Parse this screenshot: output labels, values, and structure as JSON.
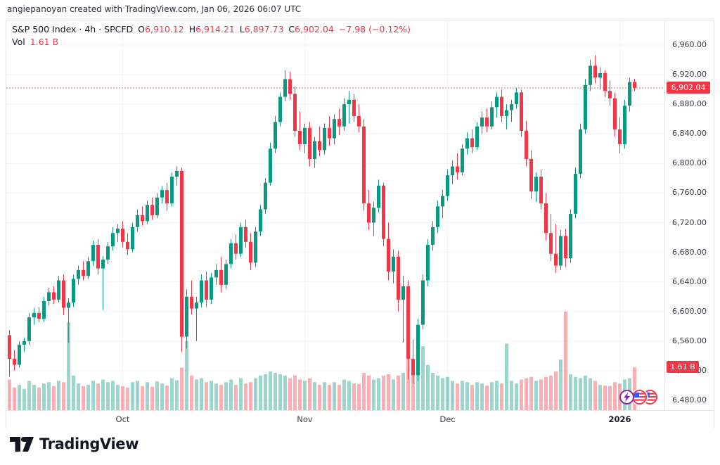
{
  "attribution": "angiepanoyan created with TradingView.com, Jan 06, 2026 06:07 UTC",
  "legend": {
    "title": "S&P 500 Index · 4h · SPCFD",
    "ohlc": [
      {
        "label": "O",
        "value": "6,910.12"
      },
      {
        "label": "H",
        "value": "6,914.21"
      },
      {
        "label": "L",
        "value": "6,897.73"
      },
      {
        "label": "C",
        "value": "6,902.04"
      }
    ],
    "change": "−7.98 (−0.12%)",
    "vol_label": "Vol",
    "vol_value": "1.61 B"
  },
  "colors": {
    "up": "#089981",
    "down": "#f23645",
    "vol_up": "rgba(8,153,129,0.40)",
    "vol_down": "rgba(242,54,69,0.40)",
    "grid": "#f0f3fa",
    "axis_text": "#363a45",
    "badge_bg": "#f23645",
    "text": "#131722"
  },
  "footer": {
    "brand": "TradingView"
  },
  "icons": {
    "status": [
      "lightning-icon",
      "us-flag-icon",
      "us-flag-icon"
    ]
  },
  "chart_data": {
    "type": "candlestick",
    "title": "S&P 500 Index",
    "interval": "4h",
    "exchange": "SPCFD",
    "legend_ohlc": {
      "open": 6910.12,
      "high": 6914.21,
      "low": 6897.73,
      "close": 6902.04,
      "change": -7.98,
      "change_pct": -0.12,
      "volume": "1.61 B"
    },
    "grid": true,
    "legend_position": "top-left",
    "y_axis": {
      "min": 6480,
      "max": 6960,
      "tick_step": 40,
      "ticks": [
        {
          "value": 6960,
          "label": "6,960.00"
        },
        {
          "value": 6920,
          "label": "6,920.00"
        },
        {
          "value": 6880,
          "label": "6,880.00"
        },
        {
          "value": 6840,
          "label": "6,840.00"
        },
        {
          "value": 6800,
          "label": "6,800.00"
        },
        {
          "value": 6760,
          "label": "6,760.00"
        },
        {
          "value": 6720,
          "label": "6,720.00"
        },
        {
          "value": 6680,
          "label": "6,680.00"
        },
        {
          "value": 6640,
          "label": "6,640.00"
        },
        {
          "value": 6600,
          "label": "6,600.00"
        },
        {
          "value": 6560,
          "label": "6,560.00"
        },
        {
          "value": 6520,
          "label": "6,520.00"
        },
        {
          "value": 6480,
          "label": "6,480.00"
        }
      ]
    },
    "x_axis": {
      "markers": [
        {
          "label": "Oct",
          "index": 23,
          "bold": false
        },
        {
          "label": "Nov",
          "index": 60,
          "bold": false
        },
        {
          "label": "Dec",
          "index": 89,
          "bold": false
        },
        {
          "label": "2026",
          "index": 124,
          "bold": true
        }
      ]
    },
    "last_price": {
      "value": 6902.04,
      "label": "6,902.04"
    },
    "last_volume": {
      "value": 1.61,
      "label": "1.61 B"
    },
    "volume_scale_max": 3.7,
    "candle_format": [
      "open",
      "high",
      "low",
      "close",
      "volume_billions"
    ],
    "candles": [
      [
        6568,
        6575,
        6512,
        6536,
        1.15
      ],
      [
        6536,
        6548,
        6520,
        6528,
        0.85
      ],
      [
        6528,
        6560,
        6524,
        6555,
        0.95
      ],
      [
        6555,
        6565,
        6545,
        6560,
        0.8
      ],
      [
        6560,
        6598,
        6555,
        6592,
        1.1
      ],
      [
        6592,
        6605,
        6582,
        6598,
        0.95
      ],
      [
        6598,
        6606,
        6585,
        6590,
        0.85
      ],
      [
        6590,
        6620,
        6586,
        6614,
        1.0
      ],
      [
        6614,
        6632,
        6608,
        6626,
        1.05
      ],
      [
        6626,
        6634,
        6610,
        6616,
        0.9
      ],
      [
        6616,
        6648,
        6612,
        6642,
        1.1
      ],
      [
        6642,
        6650,
        6595,
        6605,
        1.05
      ],
      [
        6605,
        6618,
        6558,
        6612,
        3.3
      ],
      [
        6612,
        6650,
        6606,
        6644,
        1.3
      ],
      [
        6644,
        6662,
        6636,
        6656,
        1.0
      ],
      [
        6656,
        6668,
        6642,
        6648,
        0.9
      ],
      [
        6648,
        6674,
        6644,
        6668,
        0.95
      ],
      [
        6668,
        6696,
        6662,
        6690,
        1.1
      ],
      [
        6690,
        6698,
        6650,
        6658,
        1.0
      ],
      [
        6658,
        6675,
        6602,
        6670,
        1.15
      ],
      [
        6670,
        6694,
        6664,
        6688,
        1.05
      ],
      [
        6688,
        6714,
        6682,
        6706,
        1.1
      ],
      [
        6706,
        6718,
        6694,
        6712,
        0.95
      ],
      [
        6712,
        6722,
        6686,
        6694,
        0.9
      ],
      [
        6694,
        6706,
        6676,
        6684,
        0.85
      ],
      [
        6684,
        6720,
        6680,
        6714,
        1.05
      ],
      [
        6714,
        6738,
        6708,
        6730,
        1.1
      ],
      [
        6730,
        6742,
        6716,
        6722,
        0.9
      ],
      [
        6722,
        6750,
        6718,
        6744,
        1.05
      ],
      [
        6744,
        6754,
        6724,
        6730,
        0.88
      ],
      [
        6730,
        6760,
        6726,
        6754,
        1.08
      ],
      [
        6754,
        6770,
        6746,
        6764,
        1.0
      ],
      [
        6764,
        6774,
        6736,
        6746,
        0.92
      ],
      [
        6746,
        6788,
        6742,
        6782,
        1.2
      ],
      [
        6782,
        6796,
        6770,
        6790,
        1.12
      ],
      [
        6790,
        6794,
        6545,
        6566,
        1.6
      ],
      [
        6566,
        6630,
        6550,
        6620,
        2.6
      ],
      [
        6620,
        6642,
        6596,
        6604,
        1.3
      ],
      [
        6604,
        6620,
        6560,
        6612,
        1.15
      ],
      [
        6612,
        6650,
        6606,
        6642,
        1.2
      ],
      [
        6642,
        6654,
        6606,
        6616,
        1.05
      ],
      [
        6616,
        6652,
        6610,
        6646,
        1.1
      ],
      [
        6646,
        6664,
        6636,
        6656,
        1.0
      ],
      [
        6656,
        6674,
        6626,
        6636,
        0.95
      ],
      [
        6636,
        6670,
        6630,
        6664,
        1.05
      ],
      [
        6664,
        6698,
        6658,
        6692,
        1.15
      ],
      [
        6692,
        6704,
        6670,
        6678,
        0.95
      ],
      [
        6678,
        6720,
        6674,
        6714,
        1.2
      ],
      [
        6714,
        6724,
        6686,
        6694,
        1.0
      ],
      [
        6694,
        6706,
        6656,
        6666,
        1.05
      ],
      [
        6666,
        6714,
        6660,
        6708,
        1.2
      ],
      [
        6708,
        6744,
        6702,
        6738,
        1.3
      ],
      [
        6738,
        6780,
        6732,
        6774,
        1.35
      ],
      [
        6774,
        6828,
        6770,
        6820,
        1.45
      ],
      [
        6820,
        6864,
        6814,
        6856,
        1.4
      ],
      [
        6856,
        6896,
        6850,
        6890,
        1.35
      ],
      [
        6890,
        6926,
        6884,
        6914,
        1.3
      ],
      [
        6914,
        6924,
        6886,
        6894,
        1.2
      ],
      [
        6894,
        6904,
        6836,
        6844,
        1.3
      ],
      [
        6844,
        6870,
        6818,
        6826,
        1.15
      ],
      [
        6826,
        6854,
        6814,
        6848,
        1.1
      ],
      [
        6848,
        6856,
        6796,
        6806,
        1.2
      ],
      [
        6806,
        6836,
        6794,
        6830,
        1.05
      ],
      [
        6830,
        6850,
        6810,
        6818,
        0.95
      ],
      [
        6818,
        6854,
        6812,
        6848,
        1.05
      ],
      [
        6848,
        6864,
        6824,
        6834,
        0.95
      ],
      [
        6834,
        6866,
        6826,
        6860,
        1.05
      ],
      [
        6860,
        6874,
        6838,
        6850,
        0.95
      ],
      [
        6850,
        6888,
        6844,
        6880,
        1.15
      ],
      [
        6880,
        6898,
        6854,
        6886,
        1.1
      ],
      [
        6886,
        6894,
        6856,
        6864,
        1.0
      ],
      [
        6864,
        6880,
        6842,
        6850,
        0.98
      ],
      [
        6850,
        6860,
        6736,
        6746,
        1.4
      ],
      [
        6746,
        6764,
        6710,
        6720,
        1.3
      ],
      [
        6720,
        6748,
        6702,
        6740,
        1.15
      ],
      [
        6740,
        6778,
        6734,
        6770,
        1.2
      ],
      [
        6770,
        6774,
        6688,
        6698,
        1.3
      ],
      [
        6698,
        6720,
        6642,
        6654,
        1.35
      ],
      [
        6654,
        6684,
        6638,
        6674,
        1.15
      ],
      [
        6674,
        6682,
        6600,
        6616,
        1.3
      ],
      [
        6616,
        6648,
        6558,
        6634,
        1.4
      ],
      [
        6634,
        6642,
        6508,
        6536,
        2.2
      ],
      [
        6536,
        6562,
        6502,
        6514,
        1.9
      ],
      [
        6514,
        6590,
        6506,
        6582,
        1.8
      ],
      [
        6582,
        6650,
        6576,
        6642,
        2.4
      ],
      [
        6642,
        6698,
        6634,
        6690,
        1.7
      ],
      [
        6690,
        6722,
        6682,
        6714,
        1.4
      ],
      [
        6714,
        6750,
        6706,
        6742,
        1.3
      ],
      [
        6742,
        6764,
        6726,
        6756,
        1.2
      ],
      [
        6756,
        6792,
        6750,
        6784,
        1.25
      ],
      [
        6784,
        6804,
        6772,
        6796,
        1.1
      ],
      [
        6796,
        6814,
        6778,
        6788,
        1.0
      ],
      [
        6788,
        6826,
        6784,
        6820,
        1.1
      ],
      [
        6820,
        6842,
        6812,
        6834,
        1.05
      ],
      [
        6834,
        6846,
        6814,
        6822,
        0.95
      ],
      [
        6822,
        6856,
        6818,
        6850,
        1.05
      ],
      [
        6850,
        6870,
        6840,
        6862,
        1.0
      ],
      [
        6862,
        6874,
        6842,
        6850,
        0.92
      ],
      [
        6850,
        6884,
        6846,
        6876,
        1.05
      ],
      [
        6876,
        6896,
        6862,
        6890,
        1.1
      ],
      [
        6890,
        6900,
        6856,
        6864,
        1.0
      ],
      [
        6864,
        6880,
        6846,
        6872,
        2.5
      ],
      [
        6872,
        6886,
        6856,
        6880,
        1.1
      ],
      [
        6880,
        6902,
        6874,
        6896,
        1.0
      ],
      [
        6896,
        6900,
        6836,
        6844,
        1.15
      ],
      [
        6844,
        6858,
        6796,
        6806,
        1.2
      ],
      [
        6806,
        6818,
        6752,
        6762,
        1.25
      ],
      [
        6762,
        6788,
        6748,
        6782,
        1.1
      ],
      [
        6782,
        6792,
        6738,
        6746,
        1.15
      ],
      [
        6746,
        6760,
        6696,
        6706,
        1.25
      ],
      [
        6706,
        6732,
        6668,
        6678,
        1.3
      ],
      [
        6678,
        6718,
        6652,
        6662,
        1.45
      ],
      [
        6662,
        6710,
        6656,
        6702,
        1.9
      ],
      [
        6702,
        6712,
        6660,
        6672,
        3.7
      ],
      [
        6672,
        6738,
        6666,
        6732,
        1.35
      ],
      [
        6732,
        6794,
        6726,
        6786,
        1.25
      ],
      [
        6786,
        6854,
        6780,
        6846,
        1.2
      ],
      [
        6846,
        6914,
        6840,
        6906,
        1.3
      ],
      [
        6906,
        6940,
        6898,
        6932,
        1.2
      ],
      [
        6932,
        6946,
        6908,
        6916,
        1.1
      ],
      [
        6916,
        6930,
        6900,
        6922,
        0.95
      ],
      [
        6922,
        6926,
        6890,
        6898,
        0.92
      ],
      [
        6898,
        6912,
        6878,
        6888,
        0.9
      ],
      [
        6888,
        6896,
        6836,
        6846,
        1.05
      ],
      [
        6846,
        6862,
        6814,
        6826,
        1.0
      ],
      [
        6826,
        6886,
        6820,
        6878,
        1.15
      ],
      [
        6878,
        6916,
        6870,
        6910,
        1.2
      ],
      [
        6910.12,
        6914.21,
        6897.73,
        6902.04,
        1.61
      ]
    ]
  }
}
